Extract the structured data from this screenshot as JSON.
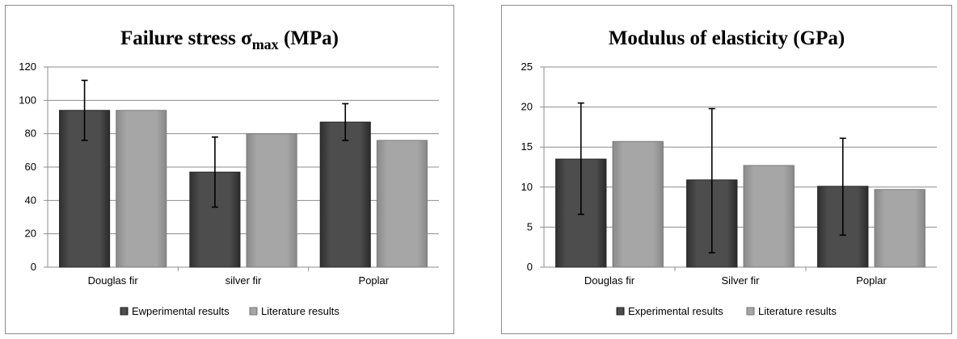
{
  "chart_data": [
    {
      "type": "bar",
      "title": "Failure stress σ",
      "title_sub": "max",
      "title_unit": " (MPa)",
      "categories": [
        "Douglas fir",
        "silver fir",
        "Poplar"
      ],
      "series": [
        {
          "name": "Ewperimental results",
          "values": [
            94,
            57,
            87
          ],
          "error": [
            [
              76,
              112
            ],
            [
              36,
              78
            ],
            [
              76,
              98
            ]
          ],
          "color": "#4d4d4d"
        },
        {
          "name": "Literature results",
          "values": [
            94,
            80,
            76
          ],
          "color": "#a6a6a6"
        }
      ],
      "ylim": [
        0,
        120
      ],
      "yticks": [
        0,
        20,
        40,
        60,
        80,
        100,
        120
      ],
      "grid": true,
      "legend": "bottom"
    },
    {
      "type": "bar",
      "title": "Modulus of elasticity (GPa)",
      "title_sub": "",
      "title_unit": "",
      "categories": [
        "Douglas fir",
        "Silver fir",
        "Poplar"
      ],
      "series": [
        {
          "name": "Experimental results",
          "values": [
            13.5,
            10.9,
            10.1
          ],
          "error": [
            [
              6.6,
              20.5
            ],
            [
              1.8,
              19.8
            ],
            [
              4.0,
              16.1
            ]
          ],
          "color": "#4d4d4d"
        },
        {
          "name": "Literature results",
          "values": [
            15.7,
            12.7,
            9.7
          ],
          "color": "#a6a6a6"
        }
      ],
      "ylim": [
        0,
        25
      ],
      "yticks": [
        0,
        5,
        10,
        15,
        20,
        25
      ],
      "grid": true,
      "legend": "bottom"
    }
  ]
}
